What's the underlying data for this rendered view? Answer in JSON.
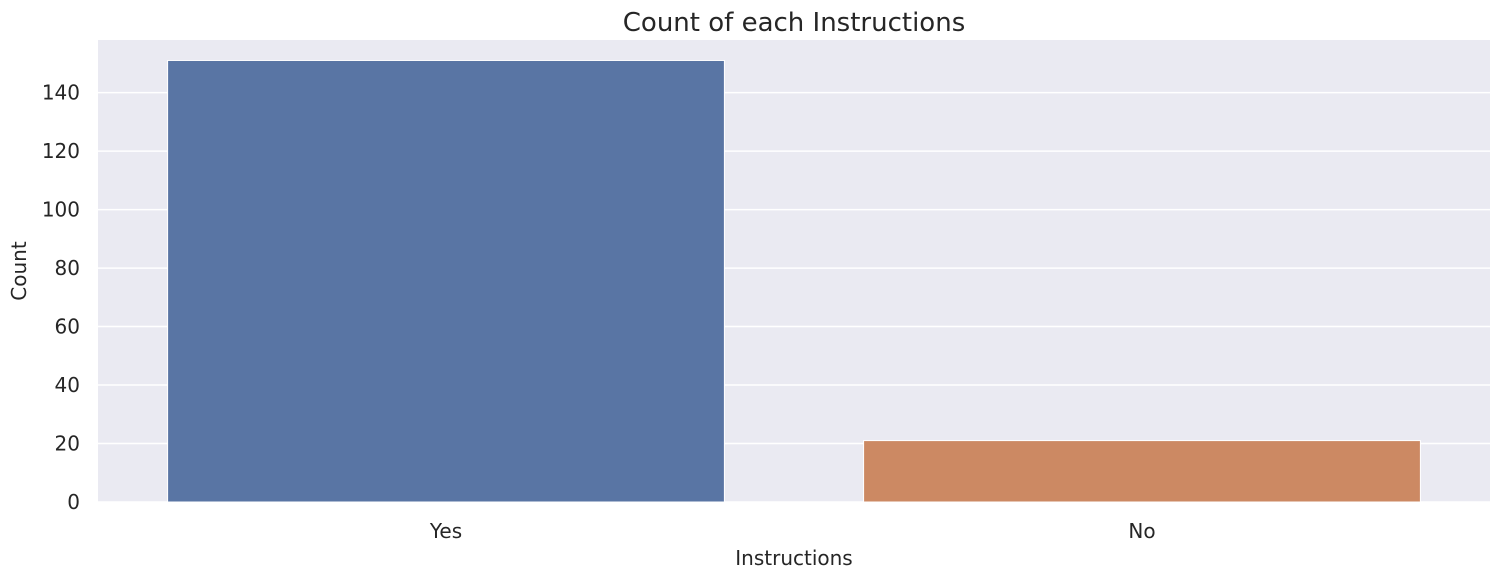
{
  "chart_data": {
    "type": "bar",
    "title": "Count of each Instructions",
    "xlabel": "Instructions",
    "ylabel": "Count",
    "categories": [
      "Yes",
      "No"
    ],
    "values": [
      151,
      21
    ],
    "colors": [
      "#5975a4",
      "#cc8963"
    ],
    "ylim": [
      0,
      158
    ],
    "yticks": [
      0,
      20,
      40,
      60,
      80,
      100,
      120,
      140
    ],
    "grid": true,
    "background": "#eaeaf2",
    "gridColor": "#ffffff"
  }
}
